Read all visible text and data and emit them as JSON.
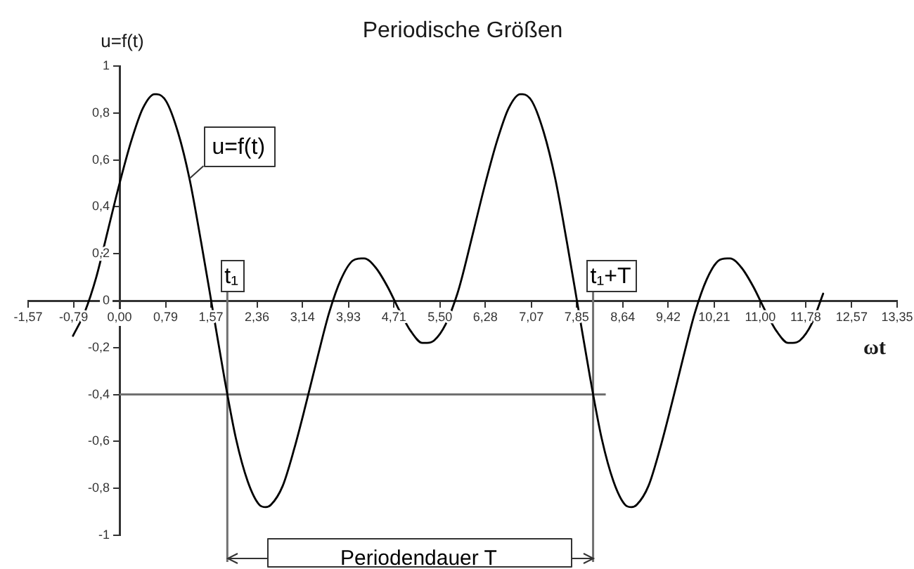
{
  "chart_data": {
    "type": "line",
    "title": "Periodische Größen",
    "xlabel": "ωt",
    "ylabel": "u=f(t)",
    "x": [
      -0.8,
      -0.6,
      -0.4,
      -0.2,
      0,
      0.2,
      0.4,
      0.6,
      0.64,
      0.8,
      1,
      1.2,
      1.4,
      1.6,
      1.8,
      2,
      2.2,
      2.4,
      2.51,
      2.6,
      2.8,
      3,
      3.2,
      3.4,
      3.6,
      3.8,
      4,
      4.15,
      4.2,
      4.4,
      4.6,
      4.8,
      5,
      5.2,
      5.28,
      5.4,
      5.6,
      5.8,
      5.88,
      6.08,
      6.28,
      6.48,
      6.68,
      6.88,
      6.92,
      7.08,
      7.28,
      7.48,
      7.68,
      7.88,
      8.08,
      8.28,
      8.48,
      8.68,
      8.79,
      8.88,
      9.08,
      9.28,
      9.48,
      9.68,
      9.88,
      10.08,
      10.28,
      10.43,
      10.48,
      10.68,
      10.88,
      11.08,
      11.28,
      11.48,
      11.56,
      11.68,
      11.88,
      12.08
    ],
    "series": [
      {
        "color": "#000000",
        "values": [
          -0.15,
          -0.05,
          0.1,
          0.3,
          0.5,
          0.68,
          0.82,
          0.88,
          0.88,
          0.85,
          0.72,
          0.52,
          0.25,
          -0.04,
          -0.33,
          -0.59,
          -0.77,
          -0.87,
          -0.88,
          -0.87,
          -0.79,
          -0.63,
          -0.44,
          -0.24,
          -0.05,
          0.09,
          0.17,
          0.18,
          0.18,
          0.14,
          0.06,
          -0.04,
          -0.13,
          -0.18,
          -0.18,
          -0.17,
          -0.1,
          0.03,
          0.1,
          0.3,
          0.5,
          0.68,
          0.82,
          0.88,
          0.88,
          0.85,
          0.72,
          0.52,
          0.25,
          -0.04,
          -0.33,
          -0.59,
          -0.77,
          -0.87,
          -0.88,
          -0.87,
          -0.79,
          -0.63,
          -0.44,
          -0.24,
          -0.05,
          0.09,
          0.17,
          0.18,
          0.18,
          0.14,
          0.06,
          -0.04,
          -0.13,
          -0.18,
          -0.18,
          -0.17,
          -0.1,
          0.03
        ]
      }
    ],
    "xlim": [
      -1.57,
      13.35
    ],
    "ylim": [
      -1,
      1
    ],
    "xticks": [
      {
        "value": -1.57,
        "label": "-1,57"
      },
      {
        "value": -0.79,
        "label": "-0,79"
      },
      {
        "value": 0,
        "label": "0,00"
      },
      {
        "value": 0.79,
        "label": "0,79"
      },
      {
        "value": 1.57,
        "label": "1,57"
      },
      {
        "value": 2.36,
        "label": "2,36"
      },
      {
        "value": 3.14,
        "label": "3,14"
      },
      {
        "value": 3.93,
        "label": "3,93"
      },
      {
        "value": 4.71,
        "label": "4,71"
      },
      {
        "value": 5.5,
        "label": "5,50"
      },
      {
        "value": 6.28,
        "label": "6,28"
      },
      {
        "value": 7.07,
        "label": "7,07"
      },
      {
        "value": 7.85,
        "label": "7,85"
      },
      {
        "value": 8.64,
        "label": "8,64"
      },
      {
        "value": 9.42,
        "label": "9,42"
      },
      {
        "value": 10.21,
        "label": "10,21"
      },
      {
        "value": 11,
        "label": "11,00"
      },
      {
        "value": 11.78,
        "label": "11,78"
      },
      {
        "value": 12.57,
        "label": "12,57"
      },
      {
        "value": 13.35,
        "label": "13,35"
      }
    ],
    "yticks": [
      -1,
      {
        "value": -0.8,
        "label": "-0,8"
      },
      {
        "value": -0.6,
        "label": "-0,6"
      },
      {
        "value": -0.4,
        "label": "-0,4"
      },
      {
        "value": -0.2,
        "label": "-0,2"
      },
      0,
      {
        "value": 0.2,
        "label": "0,2"
      },
      {
        "value": 0.4,
        "label": "0,4"
      },
      {
        "value": 0.6,
        "label": "0,6"
      },
      {
        "value": 0.8,
        "label": "0,8"
      },
      1
    ],
    "marker": "none",
    "ref_lines": [
      {
        "axis": "x",
        "value": 1.85,
        "label": "t₁",
        "color": "#707070"
      },
      {
        "axis": "x",
        "value": 8.13,
        "label": "t₁+T",
        "color": "#707070"
      },
      {
        "axis": "y",
        "value": -0.4,
        "color": "#707070"
      }
    ],
    "annotations": [
      {
        "text": "u=f(t)",
        "x": 1.2,
        "y": 0.52
      },
      "Periodendauer T"
    ]
  }
}
